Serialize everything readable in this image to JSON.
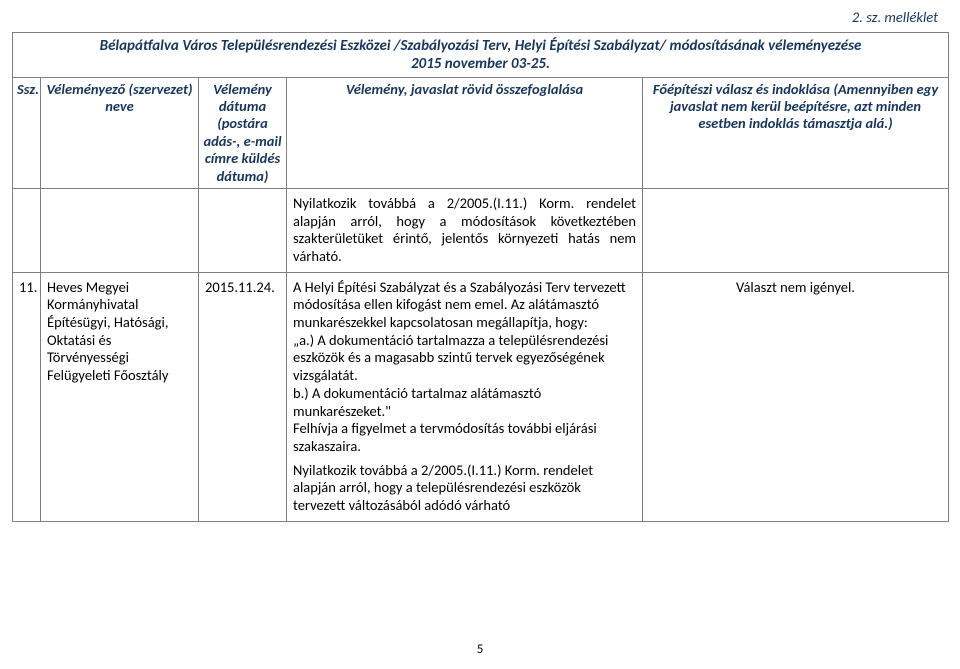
{
  "annotation": "2. sz. melléklet",
  "caption_line1": "Bélapátfalva Város Településrendezési Eszközei /Szabályozási Terv, Helyi Építési Szabályzat/ módosításának véleményezése",
  "caption_line2": "2015 november 03-25.",
  "headers": {
    "ssz": "Ssz.",
    "org": "Véleményező (szervezet) neve",
    "date": "Vélemény dátuma (postára adás-, e-mail címre küldés dátuma)",
    "summary": "Vélemény, javaslat rövid összefoglalása",
    "reply": "Főépítészi válasz és indoklása (Amennyiben egy javaslat nem kerül beépítésre, azt minden esetben indoklás támasztja alá.)"
  },
  "row1": {
    "prior_p": "Nyilatkozik  továbbá  a  2/2005.(I.11.)  Korm. rendelet alapján arról, hogy a módosítások következtében szakterületüket érintő, jelentős környezeti hatás nem várható.",
    "ssz": "11.",
    "org": "Heves Megyei Kormányhivatal Építésügyi, Hatósági, Oktatási és Törvényességi Felügyeleti Főosztály",
    "date": "2015.11.24.",
    "summary_p1": "A Helyi Építési Szabályzat és a Szabályozási Terv tervezett módosítása ellen kifogást nem emel. Az alátámasztó munkarészekkel kapcsolatosan megállapítja, hogy:",
    "summary_p2": "„a.) A dokumentáció tartalmazza a településrendezési eszközök és a magasabb szintű tervek egyezőségének vizsgálatát.",
    "summary_p3": " b.) A dokumentáció tartalmaz alátámasztó munkarészeket.\"",
    "summary_p4": "Felhívja a figyelmet a tervmódosítás további eljárási szakaszaira.",
    "summary_p5": "Nyilatkozik továbbá a 2/2005.(I.11.) Korm. rendelet alapján arról, hogy a településrendezési eszközök tervezett változásából adódó várható",
    "reply": "Választ nem igényel."
  },
  "page_number": "5",
  "colors": {
    "heading_blue": "#17365d",
    "border_gray": "#808080",
    "body_text": "#000000",
    "background": "#ffffff"
  },
  "typography": {
    "font_family": "Calibri",
    "body_fontsize_pt": 11,
    "heading_style": "bold italic"
  }
}
